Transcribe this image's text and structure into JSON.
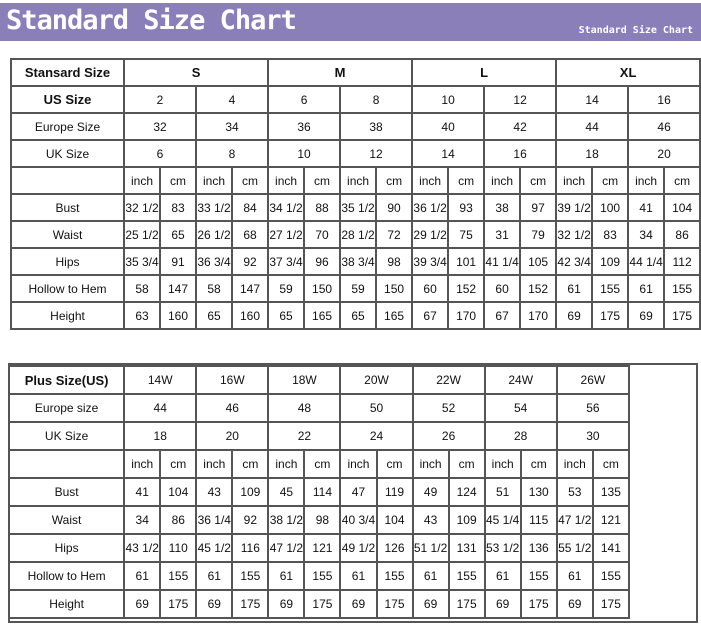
{
  "banner": {
    "title": "Standard Size Chart",
    "subtitle": "Standard Size Chart",
    "color": "#8a7fb8"
  },
  "standard": {
    "header_label": "Stansard Size",
    "groups": [
      "S",
      "M",
      "L",
      "XL"
    ],
    "us_label": "US Size",
    "us": [
      "2",
      "4",
      "6",
      "8",
      "10",
      "12",
      "14",
      "16"
    ],
    "europe_label": "Europe Size",
    "europe": [
      "32",
      "34",
      "36",
      "38",
      "40",
      "42",
      "44",
      "46"
    ],
    "uk_label": "UK Size",
    "uk": [
      "6",
      "8",
      "10",
      "12",
      "14",
      "16",
      "18",
      "20"
    ],
    "units": [
      "inch",
      "cm"
    ],
    "measurements": [
      {
        "label": "Bust",
        "values": [
          [
            "32 1/2",
            "83"
          ],
          [
            "33 1/2",
            "84"
          ],
          [
            "34 1/2",
            "88"
          ],
          [
            "35 1/2",
            "90"
          ],
          [
            "36 1/2",
            "93"
          ],
          [
            "38",
            "97"
          ],
          [
            "39 1/2",
            "100"
          ],
          [
            "41",
            "104"
          ]
        ]
      },
      {
        "label": "Waist",
        "values": [
          [
            "25 1/2",
            "65"
          ],
          [
            "26 1/2",
            "68"
          ],
          [
            "27 1/2",
            "70"
          ],
          [
            "28 1/2",
            "72"
          ],
          [
            "29 1/2",
            "75"
          ],
          [
            "31",
            "79"
          ],
          [
            "32 1/2",
            "83"
          ],
          [
            "34",
            "86"
          ]
        ]
      },
      {
        "label": "Hips",
        "values": [
          [
            "35 3/4",
            "91"
          ],
          [
            "36 3/4",
            "92"
          ],
          [
            "37 3/4",
            "96"
          ],
          [
            "38 3/4",
            "98"
          ],
          [
            "39 3/4",
            "101"
          ],
          [
            "41 1/4",
            "105"
          ],
          [
            "42 3/4",
            "109"
          ],
          [
            "44 1/4",
            "112"
          ]
        ]
      },
      {
        "label": "Hollow to Hem",
        "values": [
          [
            "58",
            "147"
          ],
          [
            "58",
            "147"
          ],
          [
            "59",
            "150"
          ],
          [
            "59",
            "150"
          ],
          [
            "60",
            "152"
          ],
          [
            "60",
            "152"
          ],
          [
            "61",
            "155"
          ],
          [
            "61",
            "155"
          ]
        ]
      },
      {
        "label": "Height",
        "values": [
          [
            "63",
            "160"
          ],
          [
            "65",
            "160"
          ],
          [
            "65",
            "165"
          ],
          [
            "65",
            "165"
          ],
          [
            "67",
            "170"
          ],
          [
            "67",
            "170"
          ],
          [
            "69",
            "175"
          ],
          [
            "69",
            "175"
          ]
        ]
      }
    ]
  },
  "plus": {
    "header_label": "Plus Size(US)",
    "us": [
      "14W",
      "16W",
      "18W",
      "20W",
      "22W",
      "24W",
      "26W"
    ],
    "europe_label": "Europe size",
    "europe": [
      "44",
      "46",
      "48",
      "50",
      "52",
      "54",
      "56"
    ],
    "uk_label": "UK Size",
    "uk": [
      "18",
      "20",
      "22",
      "24",
      "26",
      "28",
      "30"
    ],
    "units": [
      "inch",
      "cm"
    ],
    "measurements": [
      {
        "label": "Bust",
        "values": [
          [
            "41",
            "104"
          ],
          [
            "43",
            "109"
          ],
          [
            "45",
            "114"
          ],
          [
            "47",
            "119"
          ],
          [
            "49",
            "124"
          ],
          [
            "51",
            "130"
          ],
          [
            "53",
            "135"
          ]
        ]
      },
      {
        "label": "Waist",
        "values": [
          [
            "34",
            "86"
          ],
          [
            "36 1/4",
            "92"
          ],
          [
            "38 1/2",
            "98"
          ],
          [
            "40 3/4",
            "104"
          ],
          [
            "43",
            "109"
          ],
          [
            "45 1/4",
            "115"
          ],
          [
            "47 1/2",
            "121"
          ]
        ]
      },
      {
        "label": "Hips",
        "values": [
          [
            "43 1/2",
            "110"
          ],
          [
            "45 1/2",
            "116"
          ],
          [
            "47 1/2",
            "121"
          ],
          [
            "49 1/2",
            "126"
          ],
          [
            "51 1/2",
            "131"
          ],
          [
            "53 1/2",
            "136"
          ],
          [
            "55 1/2",
            "141"
          ]
        ]
      },
      {
        "label": "Hollow to Hem",
        "values": [
          [
            "61",
            "155"
          ],
          [
            "61",
            "155"
          ],
          [
            "61",
            "155"
          ],
          [
            "61",
            "155"
          ],
          [
            "61",
            "155"
          ],
          [
            "61",
            "155"
          ],
          [
            "61",
            "155"
          ]
        ]
      },
      {
        "label": "Height",
        "values": [
          [
            "69",
            "175"
          ],
          [
            "69",
            "175"
          ],
          [
            "69",
            "175"
          ],
          [
            "69",
            "175"
          ],
          [
            "69",
            "175"
          ],
          [
            "69",
            "175"
          ],
          [
            "69",
            "175"
          ]
        ]
      }
    ]
  }
}
